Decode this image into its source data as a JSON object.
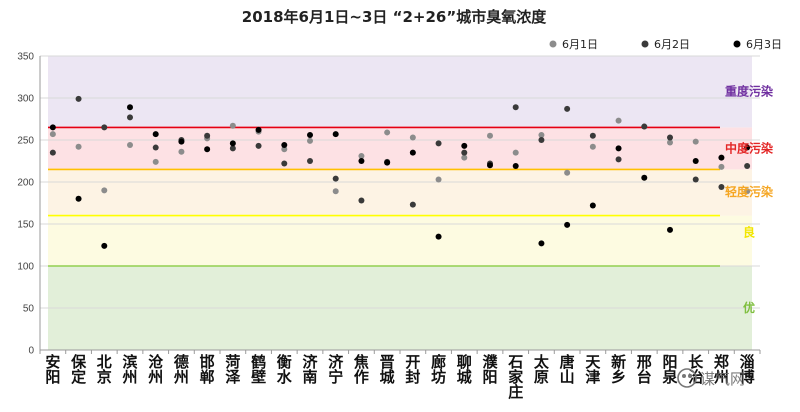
{
  "chart_data": {
    "type": "scatter",
    "title": "2018年6月1日~3日 “2+26”城市臭氧浓度",
    "ylim": [
      0,
      350
    ],
    "yticks": [
      0,
      50,
      100,
      150,
      200,
      250,
      300,
      350
    ],
    "grid": true,
    "legend_position": "top-right",
    "categories": [
      "安阳",
      "保定",
      "北京",
      "滨州",
      "沧州",
      "德州",
      "邯郸",
      "菏泽",
      "鹤壁",
      "衡水",
      "济南",
      "济宁",
      "焦作",
      "晋城",
      "开封",
      "廊坊",
      "聊城",
      "濮阳",
      "石家庄",
      "太原",
      "唐山",
      "天津",
      "新乡",
      "邢台",
      "阳泉",
      "长治",
      "郑州",
      "淄博"
    ],
    "series": [
      {
        "name": "6月1日",
        "color": "#8c8c8c",
        "values": [
          257,
          242,
          190,
          244,
          224,
          236,
          252,
          267,
          260,
          239,
          249,
          189,
          231,
          259,
          253,
          203,
          229,
          255,
          235,
          256,
          211,
          242,
          273,
          266,
          247,
          248,
          218,
          189
        ]
      },
      {
        "name": "6月2日",
        "color": "#3a3a3a",
        "values": [
          235,
          299,
          265,
          277,
          241,
          250,
          255,
          240,
          243,
          222,
          225,
          204,
          178,
          224,
          173,
          246,
          235,
          222,
          289,
          250,
          287,
          255,
          227,
          266,
          253,
          203,
          194,
          219
        ]
      },
      {
        "name": "6月3日",
        "color": "#000000",
        "values": [
          265,
          180,
          124,
          289,
          257,
          248,
          239,
          246,
          262,
          244,
          256,
          257,
          225,
          223,
          235,
          135,
          243,
          220,
          219,
          127,
          149,
          172,
          240,
          205,
          143,
          225,
          229,
          241
        ]
      }
    ],
    "bands": [
      {
        "label": "优",
        "from": 0,
        "to": 100,
        "color": "#e2efd9",
        "label_color": "#7fbf3f",
        "label_value": 50
      },
      {
        "label": "良",
        "from": 100,
        "to": 160,
        "color": "#fdfbe1",
        "label_color": "#f2e600",
        "label_value": 140
      },
      {
        "label": "轻度污染",
        "from": 160,
        "to": 215,
        "color": "#fdf3e4",
        "label_color": "#f5a623",
        "label_value": 188
      },
      {
        "label": "中度污染",
        "from": 215,
        "to": 265,
        "color": "#fde1e4",
        "label_color": "#e32626",
        "label_value": 240
      },
      {
        "label": "重度污染",
        "from": 265,
        "to": 350,
        "color": "#ece6f3",
        "label_color": "#7030a0",
        "label_value": 308
      }
    ],
    "threshold_lines": [
      {
        "value": 100,
        "color": "#92d050"
      },
      {
        "value": 160,
        "color": "#ffff00"
      },
      {
        "value": 215,
        "color": "#ffc000"
      },
      {
        "value": 265,
        "color": "#e60012"
      }
    ]
  },
  "watermark": "谋气网"
}
